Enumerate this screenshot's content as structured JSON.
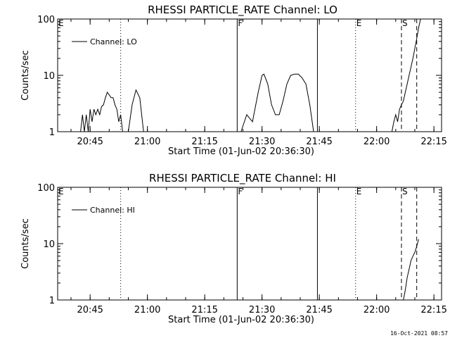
{
  "footer": {
    "timestamp": "16-Oct-2021 08:57"
  },
  "chart_data": [
    {
      "type": "line",
      "title": "RHESSI PARTICLE_RATE Channel: LO",
      "xlabel": "Start Time (01-Jun-02 20:36:30)",
      "ylabel": "Counts/sec",
      "yscale": "log",
      "ylim": [
        1,
        100
      ],
      "xlim": [
        "20:36:30",
        "22:17:00"
      ],
      "x_ticks": [
        "20:45",
        "21:00",
        "21:15",
        "21:30",
        "21:45",
        "22:00",
        "22:15"
      ],
      "y_ticks": [
        "1",
        "10",
        "100"
      ],
      "legend": {
        "position": "top-left",
        "entries": [
          "Channel: LO"
        ]
      },
      "markers": [
        {
          "label": "E",
          "time": "20:36:30",
          "style": "none"
        },
        {
          "label": "",
          "time": "20:53:00",
          "style": "dotted"
        },
        {
          "label": "F",
          "time": "21:23:30",
          "style": "solid"
        },
        {
          "label": "",
          "time": "21:44:30",
          "style": "solid"
        },
        {
          "label": "E",
          "time": "21:54:30",
          "style": "dotted"
        },
        {
          "label": "S",
          "time": "22:06:30",
          "style": "dashed"
        },
        {
          "label": "",
          "time": "22:10:30",
          "style": "dashed"
        }
      ],
      "series": [
        {
          "name": "Channel: LO",
          "segments": [
            [
              [
                "20:42:30",
                1
              ],
              [
                "20:43:00",
                2
              ],
              [
                "20:43:30",
                1
              ],
              [
                "20:44:00",
                2
              ],
              [
                "20:44:30",
                1
              ],
              [
                "20:45:00",
                2.5
              ],
              [
                "20:45:30",
                1.5
              ],
              [
                "20:46:00",
                2.5
              ],
              [
                "20:46:30",
                2
              ],
              [
                "20:47:00",
                2.5
              ],
              [
                "20:47:30",
                2
              ],
              [
                "20:48:00",
                2.8
              ],
              [
                "20:48:30",
                3
              ],
              [
                "20:49:00",
                4
              ],
              [
                "20:49:30",
                5
              ],
              [
                "20:50:00",
                4.5
              ],
              [
                "20:50:30",
                4
              ],
              [
                "20:51:00",
                4
              ],
              [
                "20:51:30",
                3
              ],
              [
                "20:52:00",
                2.5
              ],
              [
                "20:52:30",
                1.5
              ],
              [
                "20:53:00",
                2
              ],
              [
                "20:53:30",
                1
              ]
            ],
            [
              [
                "20:55:00",
                1
              ],
              [
                "20:56:00",
                3
              ],
              [
                "20:57:00",
                5.5
              ],
              [
                "20:58:00",
                4
              ],
              [
                "20:59:00",
                1
              ]
            ],
            [
              [
                "21:24:30",
                1
              ],
              [
                "21:26:00",
                2
              ],
              [
                "21:27:30",
                1.5
              ],
              [
                "21:29:00",
                5
              ],
              [
                "21:30:00",
                10
              ],
              [
                "21:30:30",
                10.5
              ],
              [
                "21:31:30",
                7
              ],
              [
                "21:32:30",
                3
              ],
              [
                "21:33:30",
                2
              ],
              [
                "21:34:30",
                2
              ],
              [
                "21:35:30",
                3.5
              ],
              [
                "21:36:30",
                7
              ],
              [
                "21:37:30",
                10
              ],
              [
                "21:38:30",
                10.5
              ],
              [
                "21:39:30",
                10.5
              ],
              [
                "21:40:30",
                9
              ],
              [
                "21:41:30",
                7
              ],
              [
                "21:42:30",
                3
              ],
              [
                "21:43:30",
                1
              ]
            ],
            [
              [
                "22:04:00",
                1
              ],
              [
                "22:04:30",
                1.5
              ],
              [
                "22:05:00",
                2
              ],
              [
                "22:05:30",
                1.5
              ],
              [
                "22:06:00",
                2.5
              ],
              [
                "22:06:30",
                3
              ],
              [
                "22:07:00",
                3.5
              ],
              [
                "22:07:30",
                5
              ],
              [
                "22:08:00",
                7
              ],
              [
                "22:08:30",
                10
              ],
              [
                "22:09:00",
                14
              ],
              [
                "22:09:30",
                20
              ],
              [
                "22:10:00",
                30
              ],
              [
                "22:10:30",
                45
              ],
              [
                "22:11:00",
                70
              ],
              [
                "22:11:30",
                100
              ]
            ]
          ]
        }
      ]
    },
    {
      "type": "line",
      "title": "RHESSI PARTICLE_RATE Channel: HI",
      "xlabel": "Start Time (01-Jun-02 20:36:30)",
      "ylabel": "Counts/sec",
      "yscale": "log",
      "ylim": [
        1,
        100
      ],
      "xlim": [
        "20:36:30",
        "22:17:00"
      ],
      "x_ticks": [
        "20:45",
        "21:00",
        "21:15",
        "21:30",
        "21:45",
        "22:00",
        "22:15"
      ],
      "y_ticks": [
        "1",
        "10",
        "100"
      ],
      "legend": {
        "position": "top-left",
        "entries": [
          "Channel: HI"
        ]
      },
      "markers": [
        {
          "label": "E",
          "time": "20:36:30",
          "style": "none"
        },
        {
          "label": "",
          "time": "20:53:00",
          "style": "dotted"
        },
        {
          "label": "F",
          "time": "21:23:30",
          "style": "solid"
        },
        {
          "label": "",
          "time": "21:44:30",
          "style": "solid"
        },
        {
          "label": "E",
          "time": "21:54:30",
          "style": "dotted"
        },
        {
          "label": "S",
          "time": "22:06:30",
          "style": "dashed"
        },
        {
          "label": "",
          "time": "22:10:30",
          "style": "dashed"
        }
      ],
      "series": [
        {
          "name": "Channel: HI",
          "segments": [
            [
              [
                "22:07:00",
                1
              ],
              [
                "22:07:30",
                1.5
              ],
              [
                "22:08:00",
                2.5
              ],
              [
                "22:08:30",
                3.5
              ],
              [
                "22:09:00",
                5
              ],
              [
                "22:09:30",
                6
              ],
              [
                "22:10:00",
                7
              ],
              [
                "22:10:30",
                9
              ],
              [
                "22:11:00",
                12
              ]
            ]
          ]
        }
      ]
    }
  ]
}
